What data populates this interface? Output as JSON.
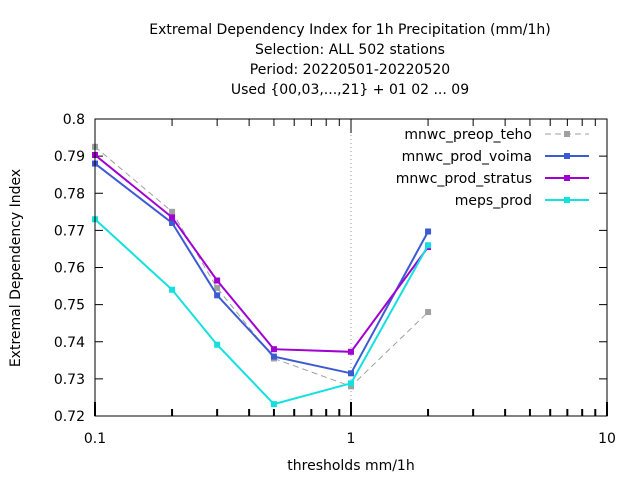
{
  "chart_data": {
    "type": "line",
    "title_lines": [
      "Extremal Dependency Index  for 1h Precipitation (mm/1h)",
      "Selection: ALL    502 stations",
      "Period: 20220501-20220520",
      "Used {00,03,...,21} + 01 02 ... 09"
    ],
    "xlabel": "thresholds mm/1h",
    "ylabel": "Extremal Dependency Index",
    "xscale": "log",
    "xlim": [
      0.1,
      10
    ],
    "ylim": [
      0.72,
      0.8
    ],
    "x_tick_labels": [
      "0.1",
      "1",
      "10"
    ],
    "y_tick_labels": [
      "0.72",
      "0.73",
      "0.74",
      "0.75",
      "0.76",
      "0.77",
      "0.78",
      "0.79",
      "0.8"
    ],
    "legend_position": "top-right",
    "x": [
      0.1,
      0.2,
      0.3,
      0.5,
      1,
      2
    ],
    "series": [
      {
        "name": "mnwc_preop_teho",
        "color": "#a0a0a0",
        "dashed": true,
        "values": [
          0.7925,
          0.775,
          0.7545,
          0.7355,
          0.728,
          0.748
        ]
      },
      {
        "name": "mnwc_prod_voima",
        "color": "#3c5ad2",
        "dashed": false,
        "values": [
          0.788,
          0.772,
          0.7525,
          0.736,
          0.7315,
          0.7697
        ]
      },
      {
        "name": "mnwc_prod_stratus",
        "color": "#a000d2",
        "dashed": false,
        "values": [
          0.7903,
          0.7735,
          0.7565,
          0.738,
          0.7373,
          0.7655
        ]
      },
      {
        "name": "meps_prod",
        "color": "#14e0e0",
        "dashed": false,
        "values": [
          0.773,
          0.754,
          0.7392,
          0.7232,
          0.7288,
          0.766
        ]
      }
    ]
  }
}
